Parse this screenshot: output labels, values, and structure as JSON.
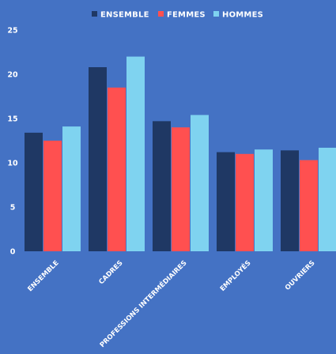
{
  "chart_data": {
    "type": "bar",
    "title": "",
    "xlabel": "",
    "ylabel": "",
    "categories": [
      "ENSEMBLE",
      "CADRES",
      "PROFESSIONS INTERMÉDIAIRES",
      "EMPLOYÉS",
      "OUVRIERS"
    ],
    "series": [
      {
        "name": "ENSEMBLE",
        "color": "#1F3864",
        "values": [
          13.4,
          20.8,
          14.7,
          11.2,
          11.4
        ]
      },
      {
        "name": "FEMMES",
        "color": "#FF5050",
        "values": [
          12.5,
          18.5,
          14.0,
          11.0,
          10.3
        ]
      },
      {
        "name": "HOMMES",
        "color": "#7FD3F0",
        "values": [
          14.1,
          22.0,
          15.4,
          11.5,
          11.7
        ]
      }
    ],
    "ylim": [
      0,
      25
    ],
    "yticks": [
      0,
      5,
      10,
      15,
      20,
      25
    ],
    "legend_position": "top-center",
    "grid": false,
    "background": "#4472C4"
  }
}
